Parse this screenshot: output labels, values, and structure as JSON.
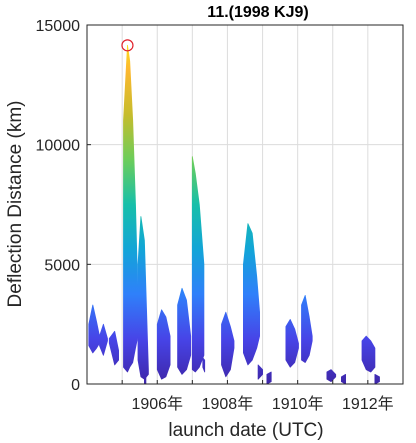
{
  "chart_data": {
    "type": "area",
    "title": "11.(1998 KJ9)",
    "xlabel": "launch date (UTC)",
    "ylabel": "Deflection Distance (km)",
    "ylim": [
      0,
      15000
    ],
    "xlim": [
      "1904-01-01",
      "1913-01-01"
    ],
    "y_ticks": [
      0,
      5000,
      10000,
      15000
    ],
    "y_tick_labels": [
      "0",
      "5000",
      "10000",
      "15000"
    ],
    "x_ticks": [
      "1906-01-01",
      "1908-01-01",
      "1910-01-01",
      "1912-01-01"
    ],
    "x_tick_labels": [
      "1906年",
      "1908年",
      "1910年",
      "1912年"
    ],
    "grid": true,
    "colormap": [
      "#3e26a8",
      "#4744e7",
      "#2f80fa",
      "#12a5d7",
      "#17bfa9",
      "#6ccd5a",
      "#c6bc2c",
      "#fdb82f",
      "#f9fb0e"
    ],
    "marker": {
      "x": "1905-02-25",
      "y": 14150,
      "color": "#e0202a"
    },
    "series": [
      {
        "values": [
          {
            "x": "1904-01-20",
            "lo": 1600,
            "hi": 2500
          },
          {
            "x": "1904-03-01",
            "lo": 1300,
            "hi": 3300
          },
          {
            "x": "1904-04-10",
            "lo": 1500,
            "hi": 2600
          },
          {
            "x": "1904-05-10",
            "lo": 1700,
            "hi": 2000
          }
        ]
      },
      {
        "values": [
          {
            "x": "1904-05-10",
            "lo": 1600,
            "hi": 2000
          },
          {
            "x": "1904-06-20",
            "lo": 1200,
            "hi": 2500
          },
          {
            "x": "1904-08-01",
            "lo": 1800,
            "hi": 1900
          }
        ]
      },
      {
        "values": [
          {
            "x": "1904-08-20",
            "lo": 1700,
            "hi": 1900
          },
          {
            "x": "1904-10-15",
            "lo": 800,
            "hi": 2200
          },
          {
            "x": "1904-11-25",
            "lo": 1000,
            "hi": 1400
          }
        ]
      },
      {
        "values": [
          {
            "x": "1905-01-15",
            "lo": 700,
            "hi": 11000
          },
          {
            "x": "1905-02-25",
            "lo": 500,
            "hi": 14150
          },
          {
            "x": "1905-03-20",
            "lo": 700,
            "hi": 13500
          },
          {
            "x": "1905-04-20",
            "lo": 900,
            "hi": 11000
          },
          {
            "x": "1905-05-20",
            "lo": 1500,
            "hi": 7500
          },
          {
            "x": "1905-06-15",
            "lo": 2000,
            "hi": 3500
          }
        ]
      },
      {
        "values": [
          {
            "x": "1905-06-15",
            "lo": 1000,
            "hi": 5000
          },
          {
            "x": "1905-07-15",
            "lo": 300,
            "hi": 7000
          },
          {
            "x": "1905-08-20",
            "lo": 200,
            "hi": 6000
          },
          {
            "x": "1905-10-01",
            "lo": 400,
            "hi": 600
          }
        ]
      },
      {
        "values": [
          {
            "x": "1905-08-20",
            "lo": 0,
            "hi": 300
          },
          {
            "x": "1905-09-05",
            "lo": 0,
            "hi": 400
          }
        ]
      },
      {
        "values": [
          {
            "x": "1906-01-01",
            "lo": 600,
            "hi": 2500
          },
          {
            "x": "1906-02-15",
            "lo": 200,
            "hi": 3100
          },
          {
            "x": "1906-04-01",
            "lo": 300,
            "hi": 2800
          },
          {
            "x": "1906-05-15",
            "lo": 800,
            "hi": 2000
          }
        ]
      },
      {
        "values": [
          {
            "x": "1906-08-01",
            "lo": 700,
            "hi": 3300
          },
          {
            "x": "1906-09-15",
            "lo": 400,
            "hi": 4000
          },
          {
            "x": "1906-11-01",
            "lo": 600,
            "hi": 3500
          },
          {
            "x": "1906-12-15",
            "lo": 1200,
            "hi": 2000
          }
        ]
      },
      {
        "values": [
          {
            "x": "1907-01-01",
            "lo": 600,
            "hi": 9500
          },
          {
            "x": "1907-02-01",
            "lo": 500,
            "hi": 8800
          },
          {
            "x": "1907-03-15",
            "lo": 700,
            "hi": 7500
          },
          {
            "x": "1907-05-01",
            "lo": 1200,
            "hi": 5000
          }
        ]
      },
      {
        "values": [
          {
            "x": "1907-04-20",
            "lo": 700,
            "hi": 1100
          },
          {
            "x": "1907-05-10",
            "lo": 500,
            "hi": 1000
          }
        ]
      },
      {
        "values": [
          {
            "x": "1907-11-01",
            "lo": 800,
            "hi": 2500
          },
          {
            "x": "1907-12-15",
            "lo": 300,
            "hi": 3000
          },
          {
            "x": "1908-02-01",
            "lo": 600,
            "hi": 2400
          },
          {
            "x": "1908-03-10",
            "lo": 1500,
            "hi": 1800
          }
        ]
      },
      {
        "values": [
          {
            "x": "1908-06-15",
            "lo": 1300,
            "hi": 5000
          },
          {
            "x": "1908-08-01",
            "lo": 800,
            "hi": 6700
          },
          {
            "x": "1908-09-15",
            "lo": 1000,
            "hi": 6300
          },
          {
            "x": "1908-11-01",
            "lo": 1500,
            "hi": 4500
          },
          {
            "x": "1908-12-01",
            "lo": 2000,
            "hi": 3000
          }
        ]
      },
      {
        "values": [
          {
            "x": "1908-11-15",
            "lo": 200,
            "hi": 800
          },
          {
            "x": "1909-01-01",
            "lo": 400,
            "hi": 600
          }
        ]
      },
      {
        "values": [
          {
            "x": "1909-02-15",
            "lo": 0,
            "hi": 400
          },
          {
            "x": "1909-04-01",
            "lo": 100,
            "hi": 500
          }
        ]
      },
      {
        "values": [
          {
            "x": "1909-09-01",
            "lo": 1000,
            "hi": 2400
          },
          {
            "x": "1909-10-15",
            "lo": 700,
            "hi": 2700
          },
          {
            "x": "1909-12-01",
            "lo": 900,
            "hi": 2300
          },
          {
            "x": "1910-01-10",
            "lo": 1500,
            "hi": 1700
          }
        ]
      },
      {
        "values": [
          {
            "x": "1910-02-10",
            "lo": 1000,
            "hi": 3300
          },
          {
            "x": "1910-03-20",
            "lo": 900,
            "hi": 3700
          },
          {
            "x": "1910-05-01",
            "lo": 1200,
            "hi": 2800
          },
          {
            "x": "1910-06-01",
            "lo": 1800,
            "hi": 2000
          }
        ]
      },
      {
        "values": [
          {
            "x": "1910-11-01",
            "lo": 200,
            "hi": 500
          },
          {
            "x": "1910-12-15",
            "lo": 100,
            "hi": 600
          },
          {
            "x": "1911-02-01",
            "lo": 300,
            "hi": 400
          }
        ]
      },
      {
        "values": [
          {
            "x": "1911-04-01",
            "lo": 100,
            "hi": 300
          },
          {
            "x": "1911-05-15",
            "lo": 0,
            "hi": 400
          }
        ]
      },
      {
        "values": [
          {
            "x": "1911-11-01",
            "lo": 1000,
            "hi": 1800
          },
          {
            "x": "1911-12-15",
            "lo": 600,
            "hi": 2000
          },
          {
            "x": "1912-02-01",
            "lo": 500,
            "hi": 1800
          },
          {
            "x": "1912-03-15",
            "lo": 700,
            "hi": 1500
          }
        ]
      },
      {
        "values": [
          {
            "x": "1912-03-15",
            "lo": 0,
            "hi": 400
          },
          {
            "x": "1912-05-01",
            "lo": 100,
            "hi": 300
          }
        ]
      }
    ]
  }
}
